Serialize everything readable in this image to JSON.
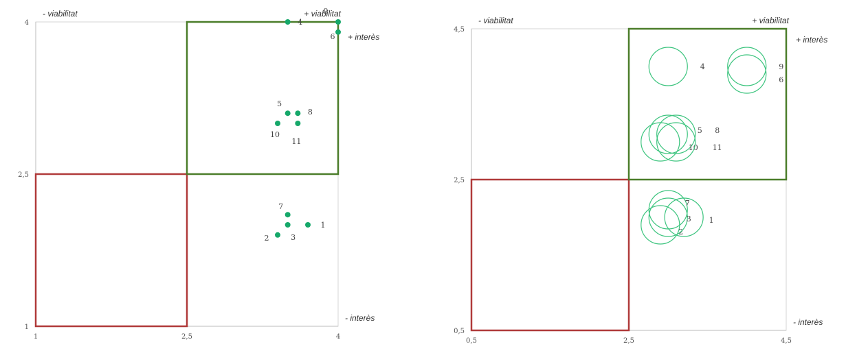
{
  "colors": {
    "point": "#16a86a",
    "bubble": "#3cc47e",
    "high_box": "#4b7d2a",
    "low_box": "#b03a3a",
    "axis": "#d6d6d6",
    "text": "#333333"
  },
  "chart_data": [
    {
      "type": "scatter",
      "title": "",
      "xlim": [
        1,
        4
      ],
      "ylim": [
        1,
        4
      ],
      "x_ticks": [
        "1",
        "2,5",
        "4"
      ],
      "y_ticks": [
        "1",
        "2,5",
        "4"
      ],
      "x_tick_values": [
        1,
        2.5,
        4
      ],
      "y_tick_values": [
        1,
        2.5,
        4
      ],
      "corner_labels": {
        "top_left": "- viabilitat",
        "top_right": "+ viabilitat",
        "right_top": "+ interès",
        "right_bottom": "- interès"
      },
      "high_box": {
        "x": [
          2.5,
          4
        ],
        "y": [
          2.5,
          4
        ]
      },
      "low_box": {
        "x": [
          1,
          2.5
        ],
        "y": [
          1,
          2.5
        ]
      },
      "points": [
        {
          "label": "1",
          "x": 3.7,
          "y": 2.0
        },
        {
          "label": "2",
          "x": 3.4,
          "y": 1.9
        },
        {
          "label": "3",
          "x": 3.5,
          "y": 2.0
        },
        {
          "label": "4",
          "x": 3.5,
          "y": 4.0
        },
        {
          "label": "5",
          "x": 3.5,
          "y": 3.1
        },
        {
          "label": "6",
          "x": 4.0,
          "y": 3.9
        },
        {
          "label": "7",
          "x": 3.5,
          "y": 2.1
        },
        {
          "label": "8",
          "x": 3.6,
          "y": 3.1
        },
        {
          "label": "9",
          "x": 4.0,
          "y": 4.0
        },
        {
          "label": "10",
          "x": 3.4,
          "y": 3.0
        },
        {
          "label": "11",
          "x": 3.6,
          "y": 3.0
        }
      ]
    },
    {
      "type": "scatter",
      "title": "",
      "xlim": [
        0.5,
        4.5
      ],
      "ylim": [
        0.5,
        4.5
      ],
      "x_ticks": [
        "0,5",
        "2,5",
        "4,5"
      ],
      "y_ticks": [
        "0,5",
        "2,5",
        "4,5"
      ],
      "x_tick_values": [
        0.5,
        2.5,
        4.5
      ],
      "y_tick_values": [
        0.5,
        2.5,
        4.5
      ],
      "corner_labels": {
        "top_left": "- viabilitat",
        "top_right": "+ viabilitat",
        "right_top": "+ interès",
        "right_bottom": "- interès"
      },
      "high_box": {
        "x": [
          2.5,
          4.5
        ],
        "y": [
          2.5,
          4.5
        ]
      },
      "low_box": {
        "x": [
          0.5,
          2.5
        ],
        "y": [
          0.5,
          2.5
        ]
      },
      "bubbles": [
        {
          "label": "1",
          "x": 3.2,
          "y": 2.0
        },
        {
          "label": "2",
          "x": 2.9,
          "y": 1.9
        },
        {
          "label": "3",
          "x": 3.0,
          "y": 2.0
        },
        {
          "label": "4",
          "x": 3.0,
          "y": 4.0
        },
        {
          "label": "5",
          "x": 3.0,
          "y": 3.1
        },
        {
          "label": "6",
          "x": 4.0,
          "y": 3.9
        },
        {
          "label": "7",
          "x": 3.0,
          "y": 2.1
        },
        {
          "label": "8",
          "x": 3.1,
          "y": 3.1
        },
        {
          "label": "9",
          "x": 4.0,
          "y": 4.0
        },
        {
          "label": "10",
          "x": 2.9,
          "y": 3.0
        },
        {
          "label": "11",
          "x": 3.1,
          "y": 3.0
        }
      ]
    }
  ]
}
